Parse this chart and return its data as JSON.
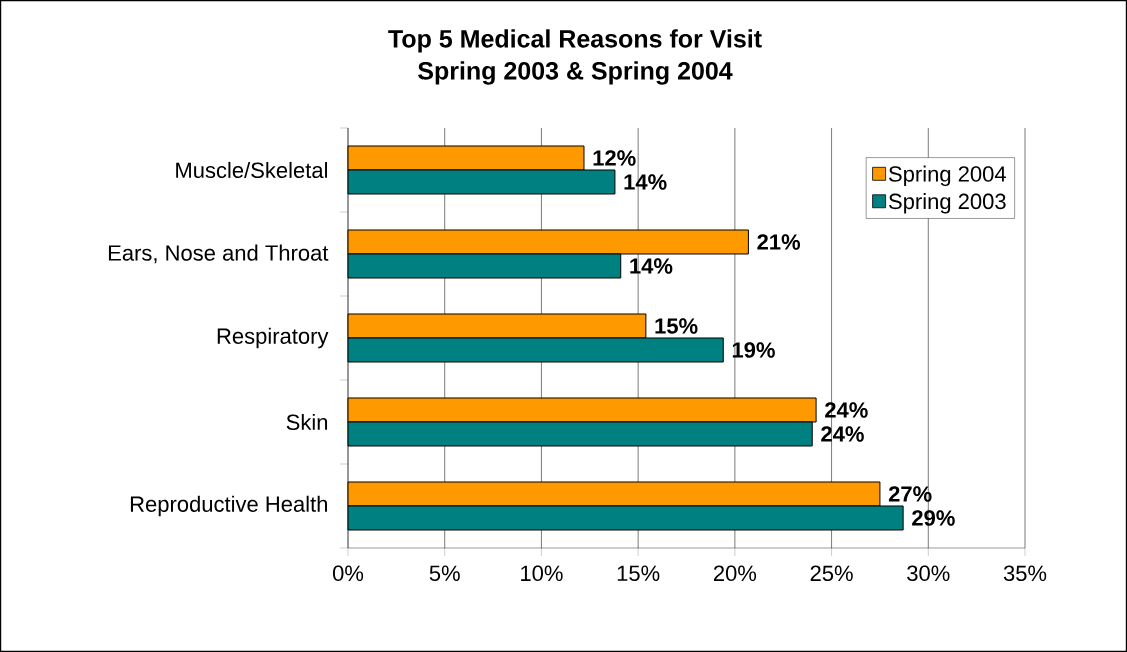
{
  "chart_data": {
    "type": "bar",
    "orientation": "horizontal",
    "title": "Top 5 Medical Reasons for Visit\nSpring 2003 & Spring 2004",
    "categories": [
      "Muscle/Skeletal",
      "Ears, Nose and Throat",
      "Respiratory",
      "Skin",
      "Reproductive Health"
    ],
    "series": [
      {
        "name": "Spring 2004",
        "color": "#ff9900",
        "values": [
          12.2,
          20.7,
          15.4,
          24.2,
          27.5
        ],
        "value_labels": [
          "12%",
          "21%",
          "15%",
          "24%",
          "27%"
        ]
      },
      {
        "name": "Spring 2003",
        "color": "#008080",
        "values": [
          13.8,
          14.1,
          19.4,
          24.0,
          28.7
        ],
        "value_labels": [
          "14%",
          "14%",
          "19%",
          "24%",
          "29%"
        ]
      }
    ],
    "xlim": [
      0,
      35
    ],
    "xticks": [
      {
        "value": 0,
        "label": "0%"
      },
      {
        "value": 5,
        "label": "5%"
      },
      {
        "value": 10,
        "label": "10%"
      },
      {
        "value": 15,
        "label": "15%"
      },
      {
        "value": 20,
        "label": "20%"
      },
      {
        "value": 25,
        "label": "25%"
      },
      {
        "value": 30,
        "label": "30%"
      },
      {
        "value": 35,
        "label": "35%"
      }
    ],
    "grid": "x",
    "legend": "top right"
  }
}
